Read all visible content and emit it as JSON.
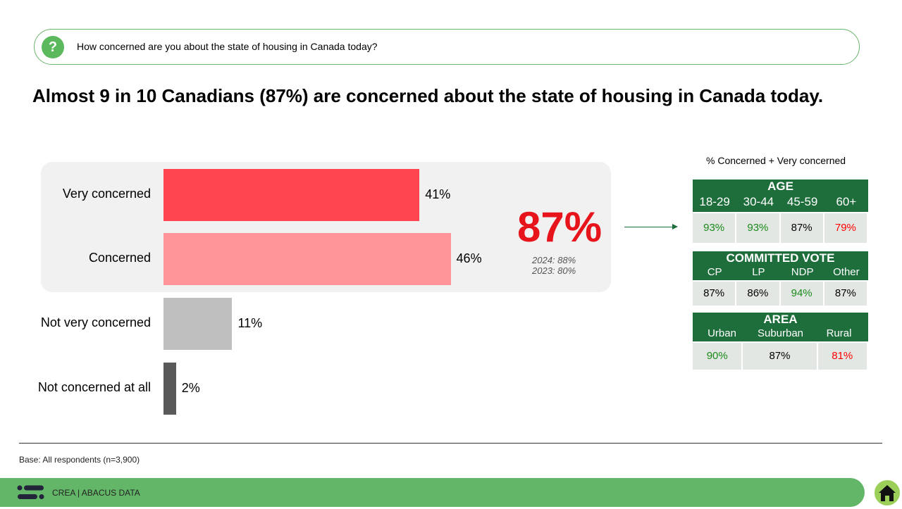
{
  "question": "How concerned are you about the state of housing in Canada today?",
  "headline": "Almost 9 in 10 Canadians (87%) are concerned about the state of housing in Canada today.",
  "chart_data": {
    "type": "bar",
    "orientation": "horizontal",
    "categories": [
      "Very concerned",
      "Concerned",
      "Not very concerned",
      "Not concerned at all"
    ],
    "values": [
      41,
      46,
      11,
      2
    ],
    "value_labels": [
      "41%",
      "46%",
      "11%",
      "2%"
    ],
    "colors": [
      "#ff4550",
      "#ff9599",
      "#bfbfbf",
      "#595959"
    ],
    "xlim": [
      0,
      100
    ]
  },
  "total": {
    "value": "87%",
    "prev": [
      "2024: 88%",
      "2023: 80%"
    ]
  },
  "subgroup_title": "% Concerned + Very concerned",
  "tables": [
    {
      "title": "AGE",
      "cols": [
        "18-29",
        "30-44",
        "45-59",
        "60+"
      ],
      "vals": [
        "93%",
        "93%",
        "87%",
        "79%"
      ],
      "colors": [
        "#1a8a1a",
        "#1a8a1a",
        "#000000",
        "#ff0000"
      ]
    },
    {
      "title": "COMMITTED VOTE",
      "cols": [
        "CP",
        "LP",
        "NDP",
        "Other"
      ],
      "vals": [
        "87%",
        "86%",
        "94%",
        "87%"
      ],
      "colors": [
        "#000000",
        "#000000",
        "#1a8a1a",
        "#000000"
      ]
    },
    {
      "title": "AREA",
      "cols": [
        "Urban",
        "Suburban",
        "Rural"
      ],
      "vals": [
        "90%",
        "87%",
        "81%"
      ],
      "colors": [
        "#1a8a1a",
        "#000000",
        "#ff0000"
      ]
    }
  ],
  "base": "Base: All respondents (n=3,900)",
  "footer": "CREA  |  ABACUS DATA"
}
